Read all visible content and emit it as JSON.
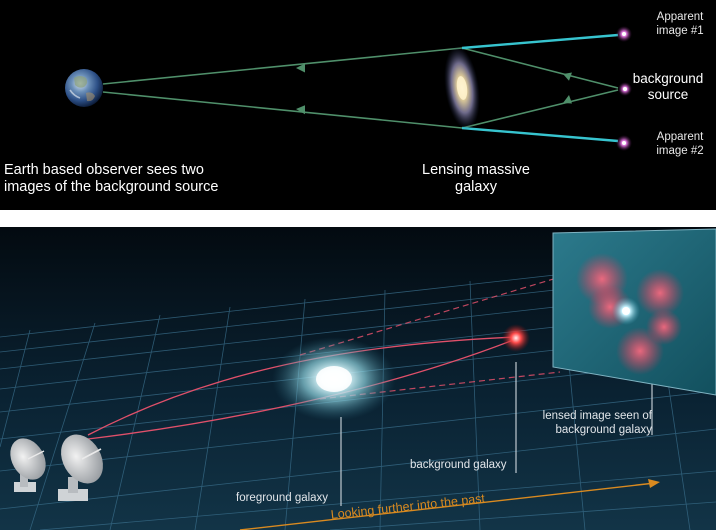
{
  "top_panel": {
    "labels": {
      "observer": "Earth based observer sees two images of the background source",
      "lensing": "Lensing massive galaxy",
      "apparent_image_1": "Apparent image #1",
      "background_source": "background source",
      "apparent_image_2": "Apparent image #2"
    },
    "colors": {
      "light_path": "#4f8f6a",
      "apparent_path": "#37c4cf"
    }
  },
  "bottom_panel": {
    "labels": {
      "foreground_galaxy": "foreground galaxy",
      "background_galaxy": "background galaxy",
      "lensed_image": "lensed image seen of background galaxy",
      "looking_past": "Looking further into the past"
    },
    "colors": {
      "light_path": "#e0506a",
      "arrow": "#d98a20",
      "grid": "#3a6f8c"
    }
  }
}
